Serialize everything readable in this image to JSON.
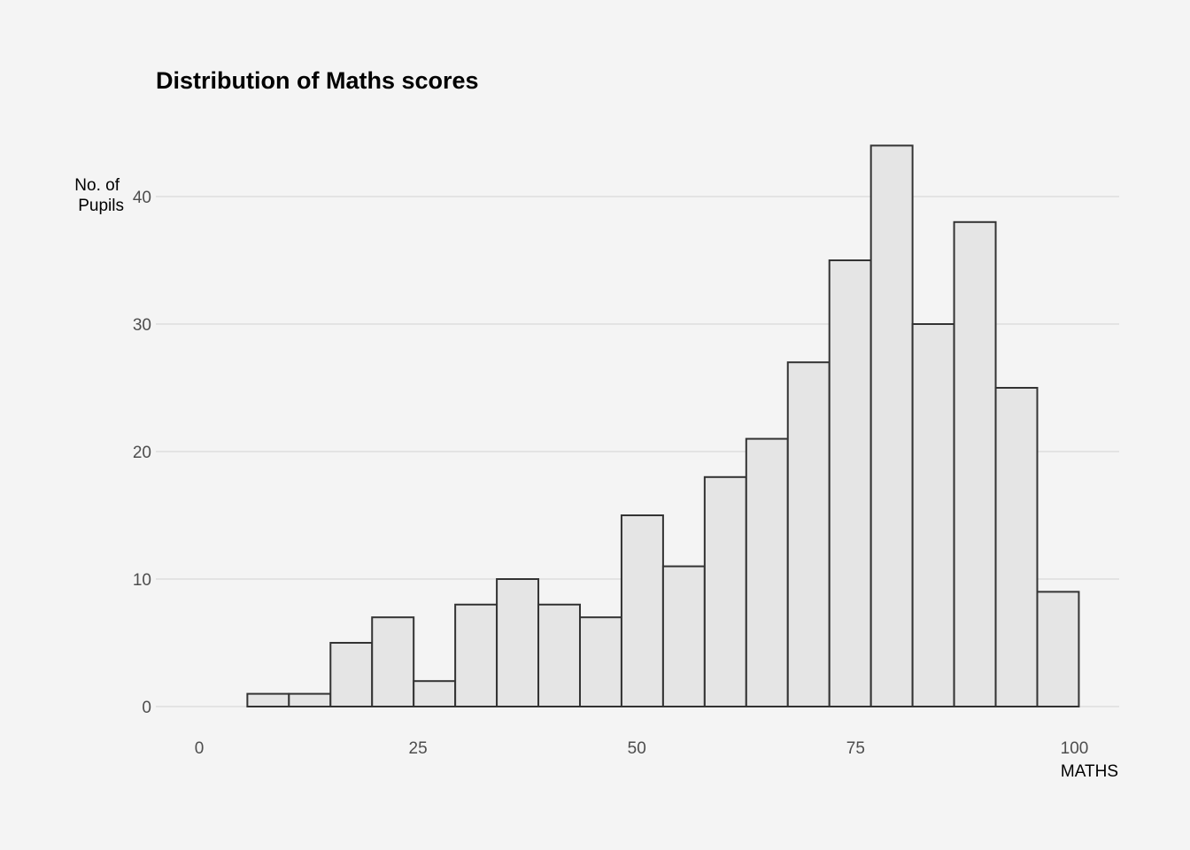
{
  "chart_data": {
    "type": "bar",
    "title": "Distribution of Maths scores",
    "xlabel": "MATHS",
    "ylabel_lines": [
      "No. of",
      "Pupils"
    ],
    "xlim": [
      -5,
      105
    ],
    "ylim": [
      0,
      46
    ],
    "bin_width": 4.75,
    "bins": [
      {
        "x0": 5.5,
        "x1": 10.25,
        "count": 1
      },
      {
        "x0": 10.25,
        "x1": 15.0,
        "count": 1
      },
      {
        "x0": 15.0,
        "x1": 19.75,
        "count": 5
      },
      {
        "x0": 19.75,
        "x1": 24.5,
        "count": 7
      },
      {
        "x0": 24.5,
        "x1": 29.25,
        "count": 2
      },
      {
        "x0": 29.25,
        "x1": 34.0,
        "count": 8
      },
      {
        "x0": 34.0,
        "x1": 38.75,
        "count": 10
      },
      {
        "x0": 38.75,
        "x1": 43.5,
        "count": 8
      },
      {
        "x0": 43.5,
        "x1": 48.25,
        "count": 7
      },
      {
        "x0": 48.25,
        "x1": 53.0,
        "count": 15
      },
      {
        "x0": 53.0,
        "x1": 57.75,
        "count": 11
      },
      {
        "x0": 57.75,
        "x1": 62.5,
        "count": 18
      },
      {
        "x0": 62.5,
        "x1": 67.25,
        "count": 21
      },
      {
        "x0": 67.25,
        "x1": 72.0,
        "count": 27
      },
      {
        "x0": 72.0,
        "x1": 76.75,
        "count": 35
      },
      {
        "x0": 76.75,
        "x1": 81.5,
        "count": 44
      },
      {
        "x0": 81.5,
        "x1": 86.25,
        "count": 30
      },
      {
        "x0": 86.25,
        "x1": 91.0,
        "count": 38
      },
      {
        "x0": 91.0,
        "x1": 95.75,
        "count": 25
      },
      {
        "x0": 95.75,
        "x1": 100.5,
        "count": 9
      }
    ],
    "x_ticks": [
      0,
      25,
      50,
      75,
      100
    ],
    "y_ticks": [
      0,
      10,
      20,
      30,
      40
    ],
    "grid": "horizontal-major",
    "colors": {
      "background": "#f4f4f4",
      "bar_fill": "#e5e5e5",
      "bar_stroke": "#333333",
      "grid": "#d2d2d2",
      "tick_text": "#4d4d4d",
      "title_text": "#000000"
    }
  }
}
